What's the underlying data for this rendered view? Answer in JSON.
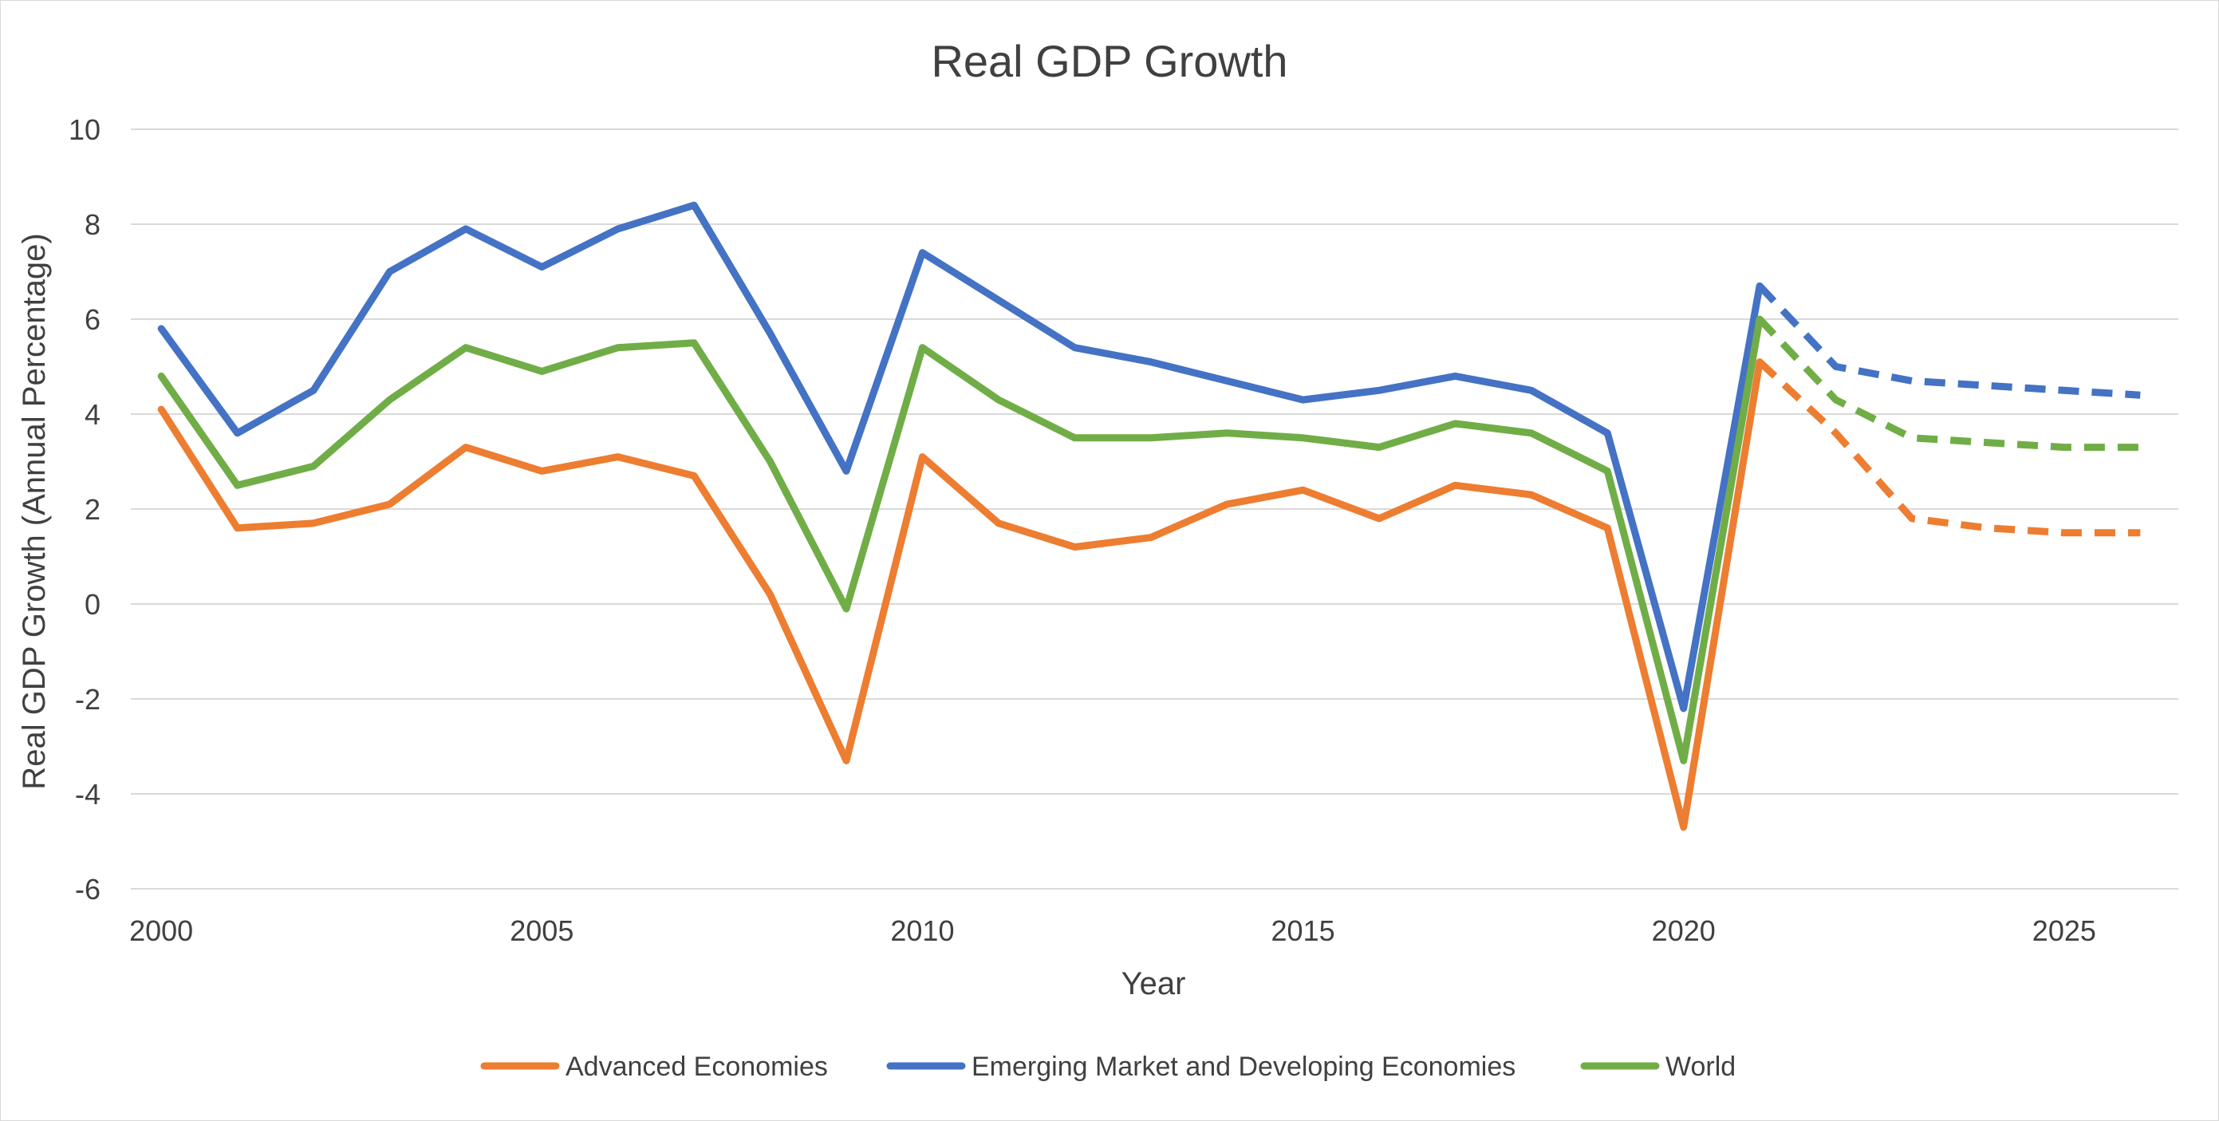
{
  "chart_data": {
    "type": "line",
    "title": "Real GDP Growth",
    "xlabel": "Year",
    "ylabel": "Real GDP Growth (Annual Percentage)",
    "xlim": [
      1999.6,
      2026.5
    ],
    "ylim": [
      -6,
      10
    ],
    "x_ticks": [
      2000,
      2005,
      2010,
      2015,
      2020,
      2025
    ],
    "y_ticks": [
      -6,
      -4,
      -2,
      0,
      2,
      4,
      6,
      8,
      10
    ],
    "grid": "horizontal",
    "legend_position": "bottom",
    "projection_start_year": 2021,
    "projection_style": "dashed",
    "x": [
      2000,
      2001,
      2002,
      2003,
      2004,
      2005,
      2006,
      2007,
      2008,
      2009,
      2010,
      2011,
      2012,
      2013,
      2014,
      2015,
      2016,
      2017,
      2018,
      2019,
      2020,
      2021,
      2022,
      2023,
      2024,
      2025,
      2026
    ],
    "series": [
      {
        "name": "Advanced Economies",
        "color": "#ed7d31",
        "values": [
          4.1,
          1.6,
          1.7,
          2.1,
          3.3,
          2.8,
          3.1,
          2.7,
          0.2,
          -3.3,
          3.1,
          1.7,
          1.2,
          1.4,
          2.1,
          2.4,
          1.8,
          2.5,
          2.3,
          1.6,
          -4.7,
          5.1,
          3.6,
          1.8,
          1.6,
          1.5,
          1.5
        ]
      },
      {
        "name": "Emerging Market and Developing Economies",
        "color": "#4472c4",
        "values": [
          5.8,
          3.6,
          4.5,
          7.0,
          7.9,
          7.1,
          7.9,
          8.4,
          5.7,
          2.8,
          7.4,
          6.4,
          5.4,
          5.1,
          4.7,
          4.3,
          4.5,
          4.8,
          4.5,
          3.6,
          -2.2,
          6.7,
          5.0,
          4.7,
          4.6,
          4.5,
          4.4
        ]
      },
      {
        "name": "World",
        "color": "#70ad47",
        "values": [
          4.8,
          2.5,
          2.9,
          4.3,
          5.4,
          4.9,
          5.4,
          5.5,
          3.0,
          -0.1,
          5.4,
          4.3,
          3.5,
          3.5,
          3.6,
          3.5,
          3.3,
          3.8,
          3.6,
          2.8,
          -3.3,
          6.0,
          4.3,
          3.5,
          3.4,
          3.3,
          3.3
        ]
      }
    ]
  }
}
